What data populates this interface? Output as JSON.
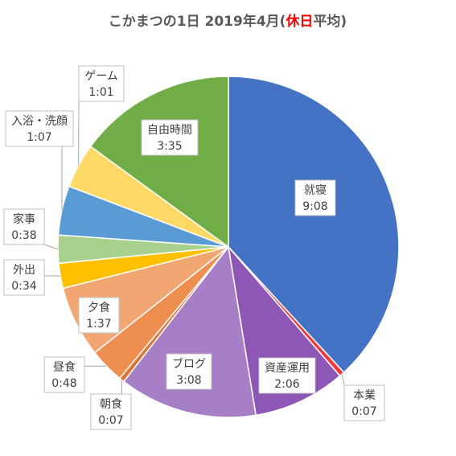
{
  "title": {
    "prefix": "こかまつの1日 2019年4月(",
    "highlight": "休日",
    "suffix": "平均)",
    "highlight_color": "#ff0000"
  },
  "chart_data": {
    "type": "pie",
    "start": "12 o'clock",
    "direction": "clockwise",
    "legend": "none",
    "slices": [
      {
        "label": "就寝",
        "value": "9:08",
        "minutes": 548,
        "color": "#4472c4"
      },
      {
        "label": "本業",
        "value": "0:07",
        "minutes": 7,
        "color": "#ed3b3b"
      },
      {
        "label": "資産運用",
        "value": "2:06",
        "minutes": 126,
        "color": "#8e57b5"
      },
      {
        "label": "ブログ",
        "value": "3:08",
        "minutes": 188,
        "color": "#a77fc6"
      },
      {
        "label": "朝食",
        "value": "0:07",
        "minutes": 7,
        "color": "#e0733a"
      },
      {
        "label": "昼食",
        "value": "0:48",
        "minutes": 48,
        "color": "#ee8f50"
      },
      {
        "label": "夕食",
        "value": "1:37",
        "minutes": 97,
        "color": "#f2a773"
      },
      {
        "label": "外出",
        "value": "0:34",
        "minutes": 34,
        "color": "#ffc000"
      },
      {
        "label": "家事",
        "value": "0:38",
        "minutes": 38,
        "color": "#a9d18e"
      },
      {
        "label": "入浴・洗顔",
        "value": "1:07",
        "minutes": 67,
        "color": "#5b9bd5"
      },
      {
        "label": "ゲーム",
        "value": "1:01",
        "minutes": 61,
        "color": "#ffd966"
      },
      {
        "label": "自由時間",
        "value": "3:35",
        "minutes": 215,
        "color": "#70ad47"
      }
    ]
  }
}
